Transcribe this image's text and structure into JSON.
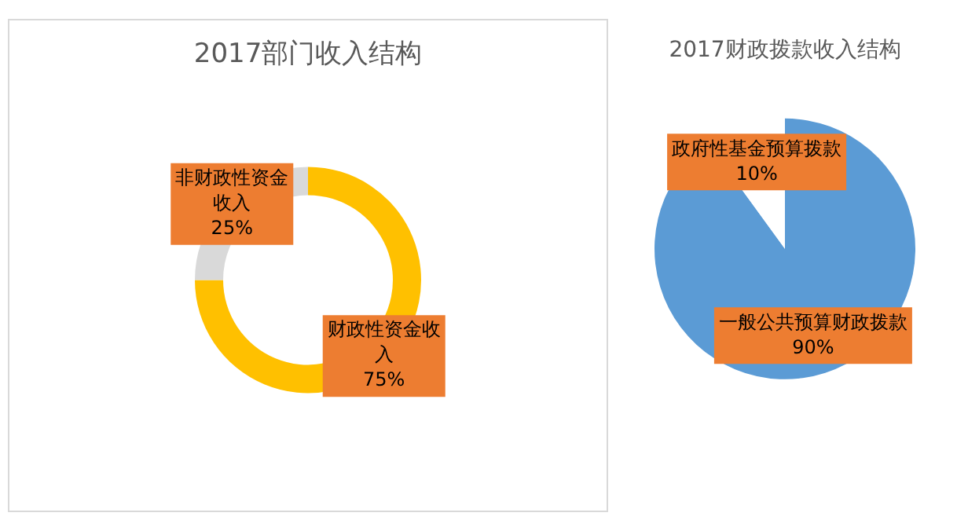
{
  "chart_data": [
    {
      "type": "donut",
      "title": "2017部门收入结构",
      "categories": [
        "财政性资金收入",
        "非财政性资金收入"
      ],
      "values": [
        75,
        25
      ],
      "colors": [
        "#ffc000",
        "#d9d9d9"
      ],
      "value_labels": [
        "75%",
        "25%"
      ],
      "legend": false
    },
    {
      "type": "pie",
      "title": "2017财政拨款收入结构",
      "categories": [
        "一般公共预算财政拨款",
        "政府性基金预算拨款"
      ],
      "values": [
        90,
        10
      ],
      "colors": [
        "#5b9bd5",
        "#ffffff"
      ],
      "value_labels": [
        "90%",
        "10%"
      ],
      "legend": false
    }
  ]
}
